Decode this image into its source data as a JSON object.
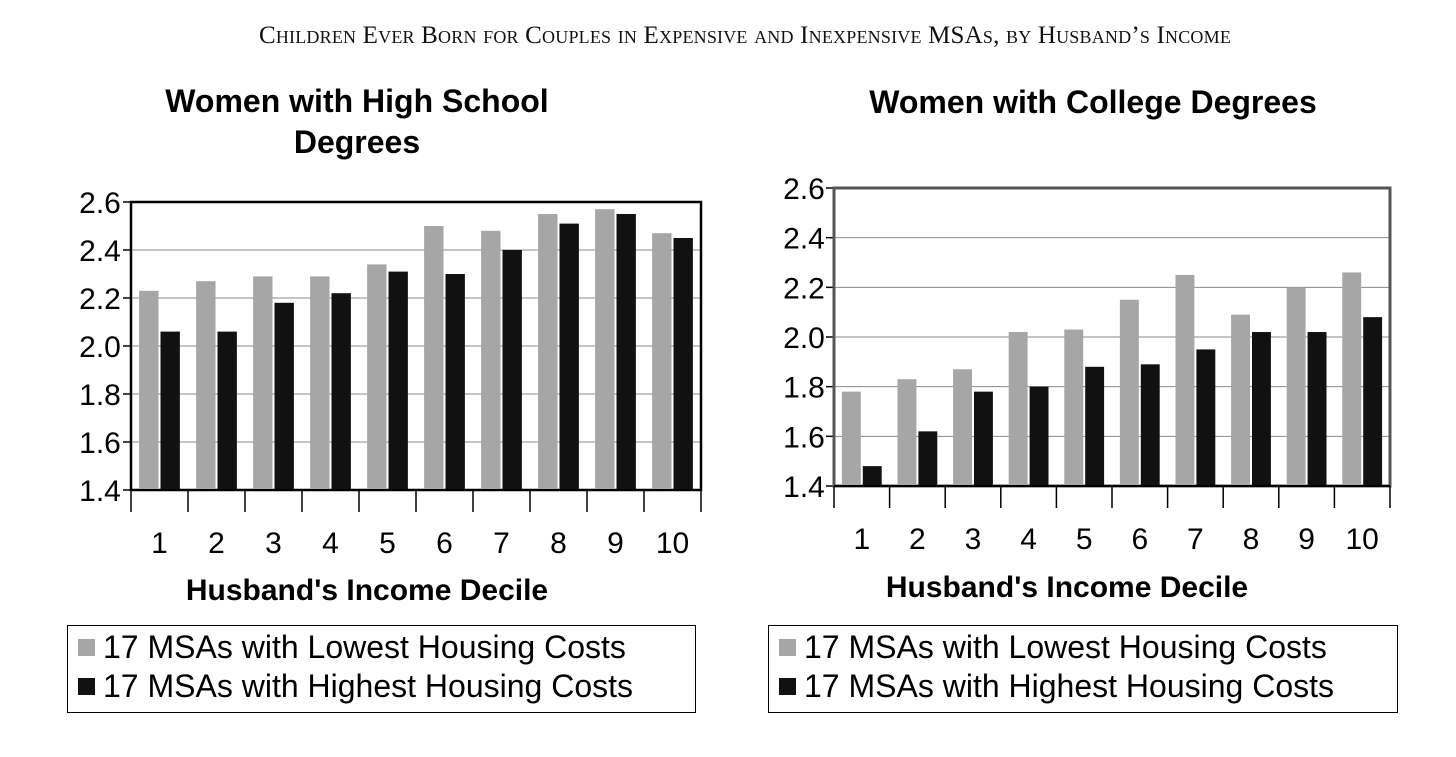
{
  "page_title": "Children Ever Born for Couples in Expensive and Inexpensive MSAs, by Husband’s Income",
  "colors": {
    "low_cost": "#a6a6a6",
    "high_cost": "#111111"
  },
  "legend_left": {
    "low_label": "17 MSAs with Lowest Housing Costs",
    "high_label": "17 MSAs with Highest Housing Costs"
  },
  "legend_right": {
    "low_label": "17 MSAs with Lowest Housing Costs",
    "high_label": "17 MSAs with Highest Housing Costs"
  },
  "chart_data": [
    {
      "type": "bar",
      "title": "Women with High School Degrees",
      "title_lines": [
        "Women with High School",
        "Degrees"
      ],
      "xlabel": "Husband's Income Decile",
      "ylabel": "",
      "categories": [
        "1",
        "2",
        "3",
        "4",
        "5",
        "6",
        "7",
        "8",
        "9",
        "10"
      ],
      "yticks": [
        "1.4",
        "1.6",
        "1.8",
        "2.0",
        "2.2",
        "2.4",
        "2.6"
      ],
      "ylim": [
        1.4,
        2.6
      ],
      "grid": true,
      "legend": "bottom",
      "series": [
        {
          "name": "17 MSAs with Lowest Housing Costs",
          "values": [
            2.23,
            2.27,
            2.29,
            2.29,
            2.34,
            2.5,
            2.48,
            2.55,
            2.57,
            2.47
          ]
        },
        {
          "name": "17 MSAs with Highest Housing Costs",
          "values": [
            2.06,
            2.06,
            2.18,
            2.22,
            2.31,
            2.3,
            2.4,
            2.51,
            2.55,
            2.45
          ]
        }
      ]
    },
    {
      "type": "bar",
      "title": "Women with College Degrees",
      "title_lines": [
        "Women with College Degrees"
      ],
      "xlabel": "Husband's Income Decile",
      "ylabel": "",
      "categories": [
        "1",
        "2",
        "3",
        "4",
        "5",
        "6",
        "7",
        "8",
        "9",
        "10"
      ],
      "yticks": [
        "1.4",
        "1.6",
        "1.8",
        "2.0",
        "2.2",
        "2.4",
        "2.6"
      ],
      "ylim": [
        1.4,
        2.6
      ],
      "grid": true,
      "legend": "bottom",
      "series": [
        {
          "name": "17 MSAs with Lowest Housing Costs",
          "values": [
            1.78,
            1.83,
            1.87,
            2.02,
            2.03,
            2.15,
            2.25,
            2.09,
            2.2,
            2.26
          ]
        },
        {
          "name": "17 MSAs with Highest Housing Costs",
          "values": [
            1.48,
            1.62,
            1.78,
            1.8,
            1.88,
            1.89,
            1.95,
            2.02,
            2.02,
            2.08
          ]
        }
      ]
    }
  ]
}
